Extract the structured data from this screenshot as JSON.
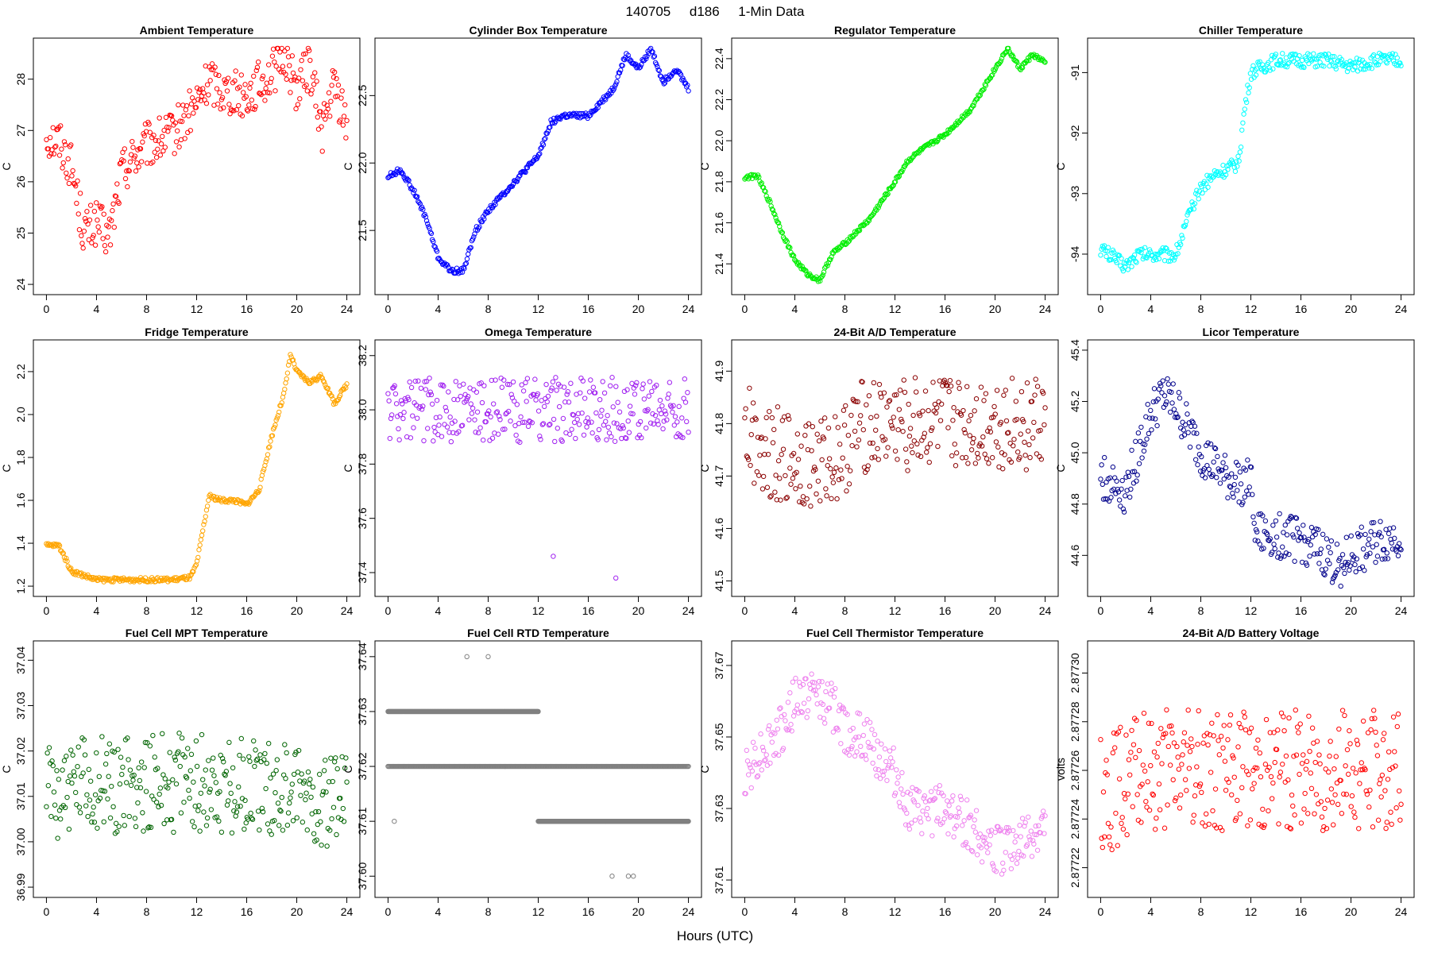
{
  "figure": {
    "title": "140705     d186     1-Min Data",
    "xlabel": "Hours (UTC)"
  },
  "chart_data": [
    {
      "type": "scatter",
      "title": "Ambient Temperature",
      "ylabel": "C",
      "color": "#ff0000",
      "xlim": [
        0,
        24
      ],
      "ylim": [
        24,
        28.6
      ],
      "xticks": [
        0,
        4,
        8,
        12,
        16,
        20,
        24
      ],
      "yticks": [
        24,
        25,
        26,
        27,
        28
      ],
      "ytick_labels": [
        "24",
        "25",
        "26",
        "27",
        "28"
      ],
      "series": [
        {
          "name": "Ambient Temperature",
          "x": [
            0,
            1,
            2,
            3,
            4,
            5,
            6,
            7,
            8,
            10,
            12,
            13,
            14,
            16,
            18,
            19,
            20,
            21,
            22,
            23,
            24
          ],
          "y": [
            26.9,
            26.8,
            26.3,
            25.0,
            25.2,
            24.9,
            26.2,
            26.5,
            26.7,
            26.9,
            27.5,
            28.0,
            27.8,
            27.7,
            28.1,
            28.5,
            27.8,
            28.3,
            27.0,
            27.9,
            27.1
          ],
          "spread": 0.45
        }
      ]
    },
    {
      "type": "scatter",
      "title": "Cylinder Box Temperature",
      "ylabel": "C",
      "color": "#0000ff",
      "xlim": [
        0,
        24
      ],
      "ylim": [
        21.1,
        22.85
      ],
      "xticks": [
        0,
        4,
        8,
        12,
        16,
        20,
        24
      ],
      "yticks": [
        21.5,
        22.0,
        22.5
      ],
      "ytick_labels": [
        "21.5",
        "22.0",
        "22.5"
      ],
      "series": [
        {
          "name": "Cylinder Box Temperature",
          "x": [
            0,
            1,
            2,
            3,
            4,
            5,
            6,
            7,
            8,
            10,
            12,
            13,
            14,
            16,
            18,
            19,
            20,
            21,
            22,
            23,
            24
          ],
          "y": [
            21.9,
            21.95,
            21.8,
            21.6,
            21.3,
            21.2,
            21.2,
            21.5,
            21.65,
            21.85,
            22.05,
            22.3,
            22.35,
            22.35,
            22.55,
            22.8,
            22.7,
            22.85,
            22.6,
            22.7,
            22.55
          ],
          "spread": 0.02
        }
      ]
    },
    {
      "type": "scatter",
      "title": "Regulator Temperature",
      "ylabel": "C",
      "color": "#00ee00",
      "xlim": [
        0,
        24
      ],
      "ylim": [
        21.3,
        22.45
      ],
      "xticks": [
        0,
        4,
        8,
        12,
        16,
        20,
        24
      ],
      "yticks": [
        21.4,
        21.6,
        21.8,
        22.0,
        22.2,
        22.4
      ],
      "ytick_labels": [
        "21.4",
        "21.6",
        "21.8",
        "22.0",
        "22.2",
        "22.4"
      ],
      "series": [
        {
          "name": "Regulator Temperature",
          "x": [
            0,
            1,
            2,
            3,
            4,
            5,
            6,
            7,
            8,
            10,
            12,
            13,
            14,
            16,
            18,
            19,
            20,
            21,
            22,
            23,
            24
          ],
          "y": [
            21.82,
            21.83,
            21.7,
            21.55,
            21.42,
            21.35,
            21.32,
            21.45,
            21.5,
            21.62,
            21.8,
            21.9,
            21.95,
            22.03,
            22.15,
            22.25,
            22.35,
            22.45,
            22.35,
            22.42,
            22.38
          ],
          "spread": 0.01
        }
      ]
    },
    {
      "type": "scatter",
      "title": "Chiller Temperature",
      "ylabel": "C",
      "color": "#00ffff",
      "xlim": [
        0,
        24
      ],
      "ylim": [
        -94.5,
        -90.6
      ],
      "xticks": [
        0,
        4,
        8,
        12,
        16,
        20,
        24
      ],
      "yticks": [
        -94,
        -93,
        -92,
        -91
      ],
      "ytick_labels": [
        "-94",
        "-93",
        "-92",
        "-91"
      ],
      "series": [
        {
          "name": "Chiller Temperature",
          "x": [
            0,
            2,
            3,
            4,
            6,
            7,
            8,
            9,
            10,
            11,
            11.5,
            12,
            13,
            14,
            16,
            18,
            20,
            22,
            24
          ],
          "y": [
            -93.9,
            -94.2,
            -94.0,
            -94.0,
            -94.0,
            -93.4,
            -92.9,
            -92.7,
            -92.6,
            -92.5,
            -91.6,
            -91.0,
            -90.9,
            -90.8,
            -90.8,
            -90.8,
            -90.9,
            -90.8,
            -90.8
          ],
          "spread": 0.12
        }
      ]
    },
    {
      "type": "scatter",
      "title": "Fridge Temperature",
      "ylabel": "C",
      "color": "#ffa500",
      "xlim": [
        0,
        24
      ],
      "ylim": [
        1.2,
        2.3
      ],
      "xticks": [
        0,
        4,
        8,
        12,
        16,
        20,
        24
      ],
      "yticks": [
        1.2,
        1.4,
        1.6,
        1.8,
        2.0,
        2.2
      ],
      "ytick_labels": [
        "1.2",
        "1.4",
        "1.6",
        "1.8",
        "2.0",
        "2.2"
      ],
      "series": [
        {
          "name": "Fridge Temperature",
          "x": [
            0,
            1,
            2,
            3,
            4,
            6,
            8,
            10,
            11.5,
            12,
            13,
            14,
            15,
            16,
            17,
            18,
            19,
            19.5,
            20,
            21,
            22,
            23,
            24
          ],
          "y": [
            1.39,
            1.39,
            1.27,
            1.25,
            1.23,
            1.23,
            1.23,
            1.23,
            1.24,
            1.3,
            1.62,
            1.6,
            1.6,
            1.58,
            1.65,
            1.9,
            2.1,
            2.28,
            2.2,
            2.15,
            2.18,
            2.05,
            2.14
          ],
          "spread": 0.01
        }
      ]
    },
    {
      "type": "scatter",
      "title": "Omega Temperature",
      "ylabel": "C",
      "color": "#a020f0",
      "xlim": [
        0,
        24
      ],
      "ylim": [
        37.35,
        38.22
      ],
      "xticks": [
        0,
        4,
        8,
        12,
        16,
        20,
        24
      ],
      "yticks": [
        37.4,
        37.6,
        37.8,
        38.0,
        38.2
      ],
      "ytick_labels": [
        "37.4",
        "37.6",
        "37.8",
        "38.0",
        "38.2"
      ],
      "series": [
        {
          "name": "Omega Temperature",
          "x": [
            0,
            4,
            6,
            8,
            12,
            16,
            20,
            24
          ],
          "y": [
            38.0,
            38.0,
            38.0,
            38.0,
            38.0,
            38.0,
            38.0,
            38.0
          ],
          "spread": 0.12
        },
        {
          "name": "Omega outliers",
          "x": [
            13.2,
            18.2
          ],
          "y": [
            37.46,
            37.38
          ],
          "spread": 0
        }
      ]
    },
    {
      "type": "scatter",
      "title": "24-Bit A/D Temperature",
      "ylabel": "C",
      "color": "#8b0000",
      "xlim": [
        0,
        24
      ],
      "ylim": [
        41.49,
        41.94
      ],
      "xticks": [
        0,
        4,
        8,
        12,
        16,
        20,
        24
      ],
      "yticks": [
        41.5,
        41.6,
        41.7,
        41.8,
        41.9
      ],
      "ytick_labels": [
        "41.5",
        "41.6",
        "41.7",
        "41.8",
        "41.9"
      ],
      "series": [
        {
          "name": "24-Bit A/D Temperature",
          "x": [
            0,
            2,
            4,
            6,
            8,
            9,
            12,
            16,
            20,
            24
          ],
          "y": [
            41.79,
            41.75,
            41.73,
            41.72,
            41.75,
            41.79,
            41.8,
            41.8,
            41.8,
            41.8
          ],
          "spread": 0.09
        }
      ]
    },
    {
      "type": "scatter",
      "title": "Licor Temperature",
      "ylabel": "C",
      "color": "#00008b",
      "xlim": [
        0,
        24
      ],
      "ylim": [
        44.48,
        45.4
      ],
      "xticks": [
        0,
        4,
        8,
        12,
        16,
        20,
        24
      ],
      "yticks": [
        44.6,
        44.8,
        45.0,
        45.2,
        45.4
      ],
      "ytick_labels": [
        "44.6",
        "44.8",
        "45.0",
        "45.2",
        "45.4"
      ],
      "series": [
        {
          "name": "Licor Temperature",
          "x": [
            0,
            2,
            4,
            5,
            6,
            8,
            10,
            12,
            12.5,
            14,
            16,
            18,
            19,
            20,
            22,
            24
          ],
          "y": [
            44.9,
            44.85,
            45.15,
            45.22,
            45.18,
            45.0,
            44.9,
            44.88,
            44.68,
            44.68,
            44.66,
            44.6,
            44.55,
            44.6,
            44.65,
            44.68
          ],
          "spread": 0.09
        }
      ]
    },
    {
      "type": "scatter",
      "title": "Fuel Cell MPT Temperature",
      "ylabel": "C",
      "color": "#006400",
      "xlim": [
        0,
        24
      ],
      "ylim": [
        36.99,
        37.042
      ],
      "xticks": [
        0,
        4,
        8,
        12,
        16,
        20,
        24
      ],
      "yticks": [
        36.99,
        37.0,
        37.01,
        37.02,
        37.03,
        37.04
      ],
      "ytick_labels": [
        "36.99",
        "37.00",
        "37.01",
        "37.02",
        "37.03",
        "37.04"
      ],
      "series": [
        {
          "name": "Fuel Cell MPT Temperature",
          "x": [
            0,
            6,
            12,
            18,
            24
          ],
          "y": [
            37.011,
            37.013,
            37.013,
            37.012,
            37.009
          ],
          "spread": 0.011
        }
      ]
    },
    {
      "type": "scatter",
      "title": "Fuel Cell RTD Temperature",
      "ylabel": "C",
      "color": "#808080",
      "xlim": [
        0,
        24
      ],
      "ylim": [
        37.598,
        37.641
      ],
      "xticks": [
        0,
        4,
        8,
        12,
        16,
        20,
        24
      ],
      "yticks": [
        37.6,
        37.61,
        37.62,
        37.63,
        37.64
      ],
      "ytick_labels": [
        "37.60",
        "37.61",
        "37.62",
        "37.63",
        "37.64"
      ],
      "series": [
        {
          "name": "level 37.63",
          "x": [
            0,
            12
          ],
          "y": [
            37.63,
            37.63
          ],
          "spread": 0
        },
        {
          "name": "level 37.62",
          "x": [
            0,
            24
          ],
          "y": [
            37.62,
            37.62
          ],
          "spread": 0
        },
        {
          "name": "level 37.61",
          "x": [
            12,
            24
          ],
          "y": [
            37.61,
            37.61
          ],
          "spread": 0
        },
        {
          "name": "outliers",
          "x": [
            0.5,
            6.3,
            8.0,
            17.9,
            19.2,
            19.6
          ],
          "y": [
            37.61,
            37.64,
            37.64,
            37.6,
            37.6,
            37.6
          ],
          "spread": 0
        }
      ]
    },
    {
      "type": "scatter",
      "title": "Fuel Cell Thermistor Temperature",
      "ylabel": "C",
      "color": "#ee82ee",
      "xlim": [
        0,
        24
      ],
      "ylim": [
        37.608,
        37.674
      ],
      "xticks": [
        0,
        4,
        8,
        12,
        16,
        20,
        24
      ],
      "yticks": [
        37.61,
        37.63,
        37.65,
        37.67
      ],
      "ytick_labels": [
        "37.61",
        "37.63",
        "37.65",
        "37.67"
      ],
      "series": [
        {
          "name": "Fuel Cell Thermistor Temperature",
          "x": [
            0,
            1,
            2,
            3,
            4,
            5,
            6,
            7,
            8,
            10,
            12,
            13,
            14,
            16,
            18,
            20,
            22,
            24
          ],
          "y": [
            37.64,
            37.645,
            37.648,
            37.652,
            37.66,
            37.662,
            37.662,
            37.658,
            37.652,
            37.648,
            37.64,
            37.63,
            37.628,
            37.63,
            37.625,
            37.618,
            37.62,
            37.625
          ],
          "spread": 0.007
        }
      ]
    },
    {
      "type": "scatter",
      "title": "24-Bit A/D Battery Voltage",
      "ylabel": "volts",
      "color": "#ff0000",
      "xlim": [
        0,
        24
      ],
      "ylim": [
        2.877212,
        2.877309
      ],
      "xticks": [
        0,
        4,
        8,
        12,
        16,
        20,
        24
      ],
      "yticks": [
        2.87722,
        2.87724,
        2.87726,
        2.87728,
        2.8773
      ],
      "ytick_labels": [
        "2.87722",
        "2.87724",
        "2.87726",
        "2.87728",
        "2.87730"
      ],
      "series": [
        {
          "name": "24-Bit A/D Battery Voltage",
          "x": [
            0,
            4,
            6,
            8,
            12,
            16,
            20,
            24
          ],
          "y": [
            2.87725,
            2.87726,
            2.87726,
            2.87726,
            2.87726,
            2.87726,
            2.87726,
            2.87726
          ],
          "spread": 2.5e-05
        }
      ]
    }
  ]
}
